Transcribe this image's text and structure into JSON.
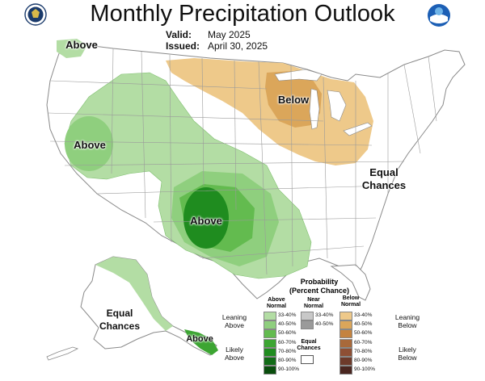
{
  "header": {
    "title": "Monthly Precipitation Outlook",
    "valid_label": "Valid:",
    "valid_value": "May 2025",
    "issued_label": "Issued:",
    "issued_value": "April 30, 2025"
  },
  "map_labels": {
    "northwest": "Above",
    "great_basin": "Above",
    "southern_plains": "Above",
    "great_lakes": "Below",
    "east": "Equal\nChances",
    "alaska": "Equal\nChances",
    "alaska_panhandle": "Above"
  },
  "legend": {
    "title": "Probability\n(Percent Chance)",
    "above_head": "Above\nNormal",
    "near_head": "Near\nNormal",
    "below_head": "Below\nNormal",
    "leaning_above": "Leaning\nAbove",
    "likely_above": "Likely\nAbove",
    "leaning_below": "Leaning\nBelow",
    "likely_below": "Likely\nBelow",
    "equal_chances": "Equal\nChances",
    "above_rows": [
      "33-40%",
      "40-50%",
      "50-60%",
      "60-70%",
      "70-80%",
      "80-90%",
      "90-100%"
    ],
    "near_rows": [
      "33-40%",
      "40-50%"
    ],
    "below_rows": [
      "33-40%",
      "40-50%",
      "50-60%",
      "60-70%",
      "70-80%",
      "80-90%",
      "90-100%"
    ],
    "above_colors": [
      "#b3dda4",
      "#8fcf7e",
      "#63bb4f",
      "#3ca532",
      "#1f8c1f",
      "#116b16",
      "#094d0d"
    ],
    "near_colors": [
      "#c8c8c8",
      "#9a9a9a"
    ],
    "below_colors": [
      "#eec98a",
      "#dba65a",
      "#c4833f",
      "#a8693a",
      "#8e4f34",
      "#6d3a2a",
      "#4a2620"
    ]
  },
  "colors": {
    "land": "#ffffff",
    "border": "#9a9a9a",
    "above_light": "#b3dda4",
    "above_mid": "#8fcf7e",
    "above_dark": "#1f8c1f",
    "above_60": "#3ca532",
    "below_light": "#eec98a",
    "below_mid": "#dba65a",
    "water": "#ffffff"
  }
}
